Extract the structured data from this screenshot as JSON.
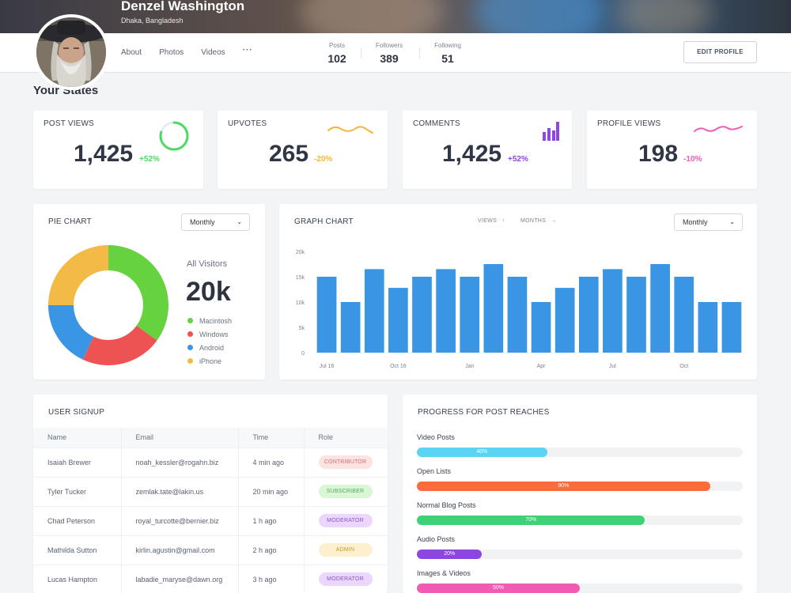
{
  "profile": {
    "name": "Denzel Washington",
    "location": "Dhaka, Bangladesh",
    "tabs": [
      "About",
      "Photos",
      "Videos",
      "···"
    ],
    "stats": [
      {
        "label": "Posts",
        "value": "102"
      },
      {
        "label": "Followers",
        "value": "389"
      },
      {
        "label": "Following",
        "value": "51"
      }
    ],
    "edit_label": "EDIT PROFILE"
  },
  "section_title": "Your States",
  "kpis": [
    {
      "title": "POST VIEWS",
      "value": "1,425",
      "delta": "+52%",
      "color": "#4cd964",
      "icon": "progress-ring-icon"
    },
    {
      "title": "UPVOTES",
      "value": "265",
      "delta": "-20%",
      "color": "#f2b63d",
      "icon": "wave-icon"
    },
    {
      "title": "COMMENTS",
      "value": "1,425",
      "delta": "+52%",
      "color": "#8d46e0",
      "icon": "bar-icon"
    },
    {
      "title": "PROFILE VIEWS",
      "value": "198",
      "delta": "-10%",
      "color": "#f25bb4",
      "icon": "wave-icon"
    }
  ],
  "pie": {
    "title": "PIE CHART",
    "select": "Monthly",
    "caption": "All Visitors",
    "total": "20k"
  },
  "graph": {
    "title": "GRAPH CHART",
    "toggle_views": "VIEWS",
    "toggle_months": "MONTHS",
    "select": "Monthly"
  },
  "chart_data": [
    {
      "type": "pie",
      "labels": [
        "Macintosh",
        "Windows",
        "Android",
        "iPhone"
      ],
      "values": [
        35,
        22,
        18,
        25
      ],
      "colors": [
        "#66d23f",
        "#ee5354",
        "#3b95e5",
        "#f3bb45"
      ]
    },
    {
      "type": "bar",
      "x_ticks": [
        "Jul 16",
        "Oct 16",
        "Jan",
        "Apr",
        "Jul",
        "Oct"
      ],
      "values": [
        15000,
        10000,
        16500,
        12800,
        15000,
        16500,
        15000,
        17500,
        15000,
        10000,
        12800,
        15000,
        16500,
        15000,
        17500,
        15000,
        10000,
        10000
      ],
      "y_ticks": [
        "0",
        "5k",
        "10k",
        "15k",
        "20k"
      ],
      "ylim": [
        0,
        20000
      ],
      "color": "#3b95e5"
    }
  ],
  "signup": {
    "title": "USER SIGNUP",
    "columns": [
      "Name",
      "Email",
      "Time",
      "Role"
    ],
    "rows": [
      {
        "name": "Isaiah Brewer",
        "email": "noah_kessler@rogahn.biz",
        "time": "4 min ago",
        "role": "CONTRIBUTOR"
      },
      {
        "name": "Tyler Tucker",
        "email": "zemlak.tate@lakin.us",
        "time": "20 min ago",
        "role": "SUBSCRIBER"
      },
      {
        "name": "Chad Peterson",
        "email": "royal_turcotte@bernier.biz",
        "time": "1 h ago",
        "role": "MODERATOR"
      },
      {
        "name": "Mathilda Sutton",
        "email": "kirlin.agustin@gmail.com",
        "time": "2 h ago",
        "role": "ADMIN"
      },
      {
        "name": "Lucas Hampton",
        "email": "labadie_maryse@dawn.org",
        "time": "3 h ago",
        "role": "MODERATOR"
      }
    ]
  },
  "progress": {
    "title": "PROGRESS FOR POST REACHES",
    "items": [
      {
        "label": "Video Posts",
        "value": 40,
        "text": "40%",
        "color": "#5bd3f3"
      },
      {
        "label": "Open Lists",
        "value": 90,
        "text": "90%",
        "color": "#fb6b3c"
      },
      {
        "label": "Normal Blog Posts",
        "value": 70,
        "text": "70%",
        "color": "#3fd176"
      },
      {
        "label": "Audio Posts",
        "value": 20,
        "text": "20%",
        "color": "#8d46e0"
      },
      {
        "label": "Images & Videos",
        "value": 50,
        "text": "50%",
        "color": "#f25bb4"
      }
    ]
  }
}
